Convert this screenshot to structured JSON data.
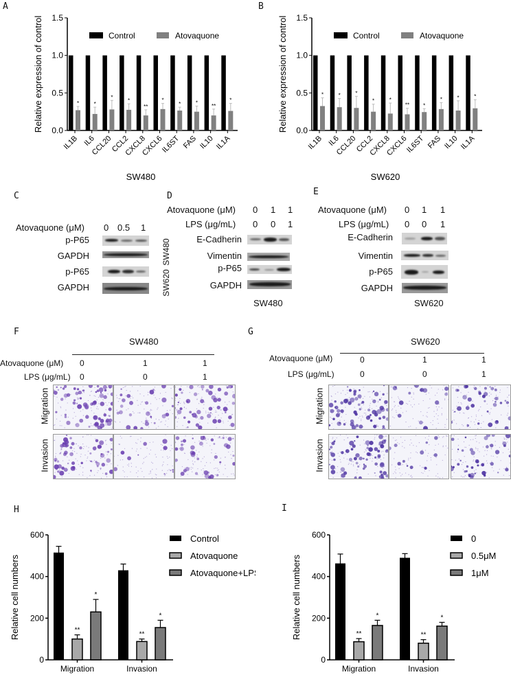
{
  "panel_letters": {
    "A": "A",
    "B": "B",
    "C": "C",
    "D": "D",
    "E": "E",
    "F": "F",
    "G": "G",
    "H": "H",
    "I": "I"
  },
  "chart_data": [
    {
      "id": "A",
      "type": "bar",
      "title": "",
      "xlabel": "SW480",
      "ylabel": "Relative expression of control",
      "ylim": [
        0,
        1.5
      ],
      "yticks": [
        "0.0",
        "0.5",
        "1.0",
        "1.5"
      ],
      "legend_position": "top",
      "categories": [
        "IL1B",
        "IL6",
        "CCL20",
        "CCL2",
        "CXCL8",
        "CXCL6",
        "IL6ST",
        "FAS",
        "IL10",
        "IL1A"
      ],
      "series": [
        {
          "name": "Control",
          "color": "#000000",
          "values": [
            1,
            1,
            1,
            1,
            1,
            1,
            1,
            1,
            1,
            1
          ],
          "errors": [
            0,
            0,
            0,
            0,
            0,
            0,
            0,
            0,
            0,
            0
          ]
        },
        {
          "name": "Atovaquone",
          "color": "#808080",
          "values": [
            0.27,
            0.22,
            0.28,
            0.275,
            0.2,
            0.285,
            0.265,
            0.25,
            0.2,
            0.26
          ],
          "errors": [
            0.05,
            0.09,
            0.12,
            0.08,
            0.075,
            0.075,
            0.045,
            0.075,
            0.085,
            0.1
          ]
        }
      ],
      "significance": [
        "*",
        "*",
        "*",
        "*",
        "**",
        "*",
        "*",
        "*",
        "**",
        "*"
      ]
    },
    {
      "id": "B",
      "type": "bar",
      "title": "",
      "xlabel": "SW620",
      "ylabel": "Relative expression of control",
      "ylim": [
        0,
        1.5
      ],
      "yticks": [
        "0.0",
        "0.5",
        "1.0",
        "1.5"
      ],
      "legend_position": "top",
      "categories": [
        "IL1B",
        "IL6",
        "CCL20",
        "CCL2",
        "CXCL8",
        "CXCL6",
        "IL6ST",
        "FAS",
        "IL10",
        "IL1A"
      ],
      "series": [
        {
          "name": "Control",
          "color": "#000000",
          "values": [
            1,
            1,
            1,
            1,
            1,
            1,
            1,
            1,
            1,
            1
          ],
          "errors": [
            0,
            0,
            0,
            0,
            0,
            0,
            0,
            0,
            0,
            0
          ]
        },
        {
          "name": "Atovaquone",
          "color": "#808080",
          "values": [
            0.325,
            0.31,
            0.3,
            0.25,
            0.225,
            0.215,
            0.245,
            0.285,
            0.265,
            0.295
          ],
          "errors": [
            0.11,
            0.115,
            0.155,
            0.1,
            0.14,
            0.08,
            0.045,
            0.085,
            0.13,
            0.115
          ]
        }
      ],
      "significance": [
        "*",
        "*",
        "*",
        "*",
        "*",
        "**",
        "*",
        "*",
        "*",
        "*"
      ]
    },
    {
      "id": "H",
      "type": "bar",
      "title": "",
      "xlabel": "",
      "ylabel": "Relative cell numbers",
      "ylim": [
        0,
        600
      ],
      "yticks": [
        "0",
        "200",
        "400",
        "600"
      ],
      "legend_position": "right",
      "categories": [
        "Migration",
        "Invasion"
      ],
      "series": [
        {
          "name": "Control",
          "color": "#000000",
          "values": [
            515,
            430
          ],
          "errors": [
            30,
            30
          ]
        },
        {
          "name": "Atovaquone",
          "color": "#a8a8a8",
          "values": [
            100,
            88
          ],
          "errors": [
            20,
            12
          ]
        },
        {
          "name": "Atovaquone+LPS",
          "color": "#7a7a7a",
          "values": [
            230,
            155
          ],
          "errors": [
            60,
            35
          ]
        }
      ],
      "significance": [
        [
          "",
          "**",
          "*"
        ],
        [
          "",
          "**",
          "*"
        ]
      ]
    },
    {
      "id": "I",
      "type": "bar",
      "title": "",
      "xlabel": "",
      "ylabel": "Relative cell numbers",
      "ylim": [
        0,
        600
      ],
      "yticks": [
        "0",
        "200",
        "400",
        "600"
      ],
      "legend_position": "right",
      "categories": [
        "Migration",
        "Invasion"
      ],
      "series": [
        {
          "name": "0",
          "color": "#000000",
          "values": [
            463,
            490
          ],
          "errors": [
            45,
            20
          ]
        },
        {
          "name": "0.5μM",
          "color": "#a8a8a8",
          "values": [
            87,
            80
          ],
          "errors": [
            15,
            17
          ]
        },
        {
          "name": "1μM",
          "color": "#7a7a7a",
          "values": [
            165,
            162
          ],
          "errors": [
            25,
            18
          ]
        }
      ],
      "significance": [
        [
          "",
          "**",
          "*"
        ],
        [
          "",
          "**",
          "*"
        ]
      ]
    }
  ],
  "blot_C": {
    "treatment_label": "Atovaquone (μM)",
    "doses": [
      "0",
      "0.5",
      "1"
    ],
    "rows": [
      "p-P65",
      "GAPDH",
      "p-P65",
      "GAPDH"
    ],
    "cell_lines": [
      "SW480",
      "SW620"
    ]
  },
  "blot_D": {
    "atovaquone_label": "Atovaquone (μM)",
    "atovaquone": [
      "0",
      "1",
      "1"
    ],
    "lps_label": "LPS (μg/mL)",
    "lps": [
      "0",
      "0",
      "1"
    ],
    "rows": [
      "E-Cadherin",
      "Vimentin",
      "p-P65",
      "GAPDH"
    ],
    "cell_line": "SW480"
  },
  "blot_E": {
    "atovaquone_label": "Atovaquone (μM)",
    "atovaquone": [
      "0",
      "1",
      "1"
    ],
    "lps_label": "LPS (μg/mL)",
    "lps": [
      "0",
      "0",
      "1"
    ],
    "rows": [
      "E-Cadherin",
      "Vimentin",
      "p-P65",
      "GAPDH"
    ],
    "cell_line": "SW620"
  },
  "transwell_F": {
    "cell_line": "SW480",
    "atovaquone_label": "Atovaquone (μM)",
    "atovaquone": [
      "0",
      "1",
      "1"
    ],
    "lps_label": "LPS (μg/mL)",
    "lps": [
      "0",
      "0",
      "1"
    ],
    "rows": [
      "Migration",
      "Invasion"
    ],
    "stain_color": "#6a3fb0"
  },
  "transwell_G": {
    "cell_line": "SW620",
    "atovaquone_label": "Atovaquone (μM)",
    "atovaquone": [
      "0",
      "1",
      "1"
    ],
    "lps_label": "LPS (μg/mL)",
    "lps": [
      "0",
      "0",
      "1"
    ],
    "rows": [
      "Migration",
      "Invasion"
    ],
    "stain_color": "#4a2fa0"
  }
}
